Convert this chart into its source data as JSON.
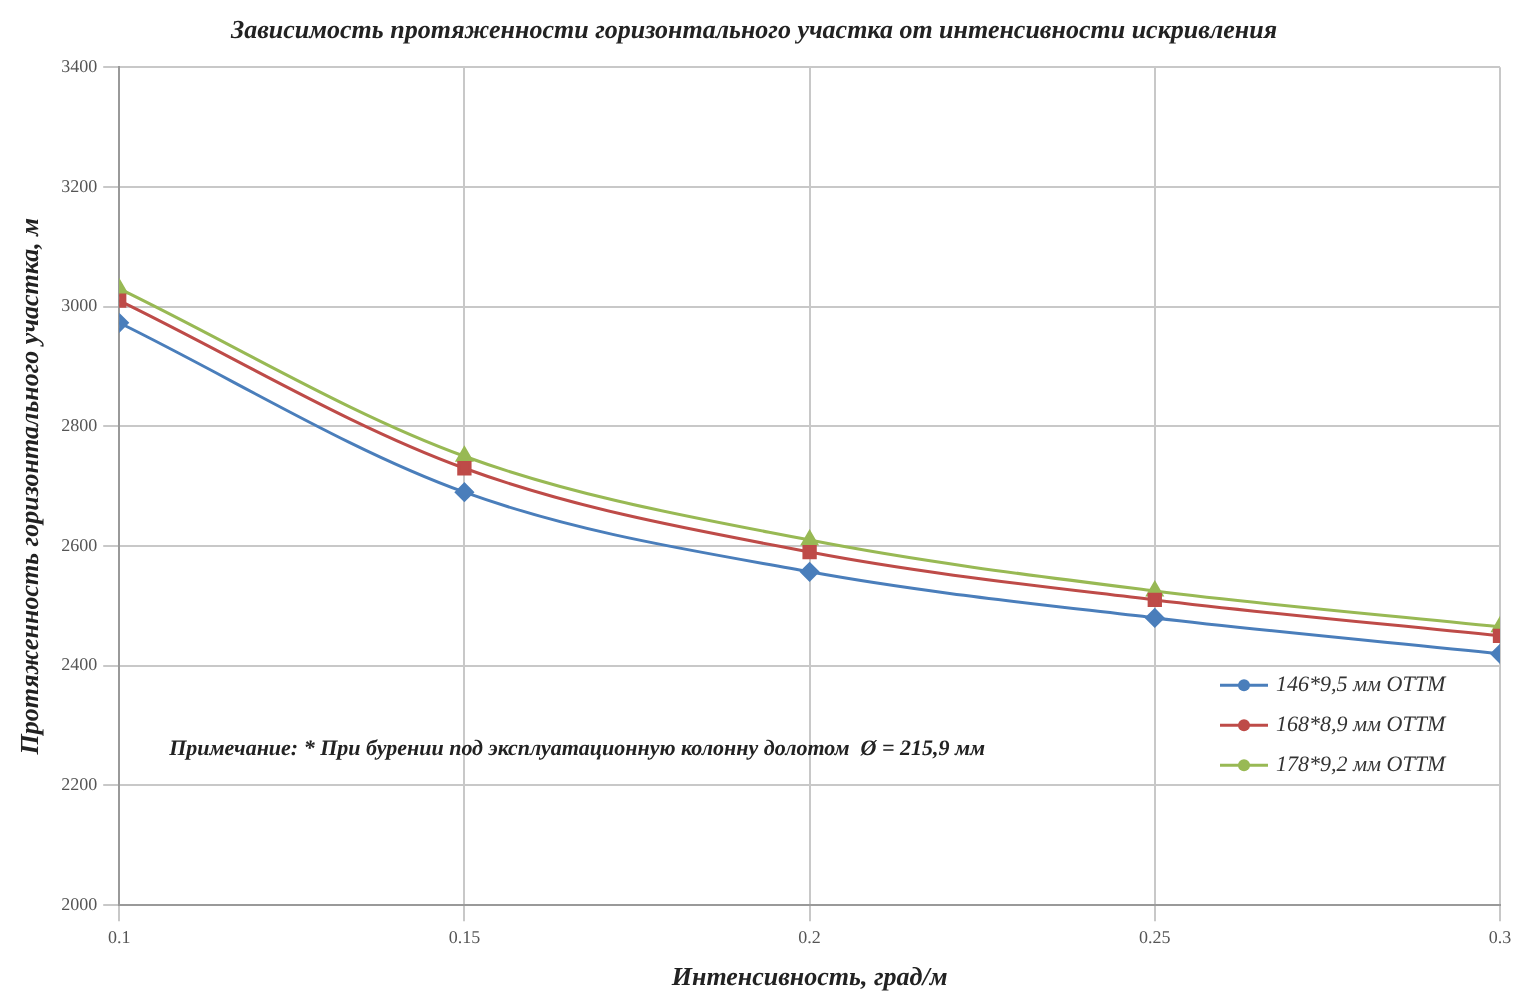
{
  "chart_data": {
    "type": "line",
    "title": "Зависимость протяженности горизонтального участка от интенсивности искривления",
    "xlabel": "Интенсивность, град/м",
    "ylabel": "Протяженность горизонтального участка, м",
    "x": [
      0.1,
      0.15,
      0.2,
      0.25,
      0.3
    ],
    "series": [
      {
        "name": "146*9,5 мм ОТТМ",
        "color": "#4a7ebb",
        "marker": "diamond",
        "values": [
          2973,
          2690,
          2557,
          2480,
          2420
        ]
      },
      {
        "name": "168*8,9 мм ОТТМ",
        "color": "#be4b48",
        "marker": "square",
        "values": [
          3010,
          2730,
          2590,
          2510,
          2450
        ]
      },
      {
        "name": "178*9,2 мм ОТТМ",
        "color": "#98b954",
        "marker": "triangle",
        "values": [
          3030,
          2750,
          2610,
          2525,
          2465
        ]
      }
    ],
    "xlim": [
      0.1,
      0.3
    ],
    "xticks": [
      0.1,
      0.15,
      0.2,
      0.25,
      0.3
    ],
    "ylim": [
      2000,
      3400
    ],
    "yticks": [
      2000,
      2200,
      2400,
      2600,
      2800,
      3000,
      3200,
      3400
    ],
    "grid": true,
    "legend": "bottom right",
    "line_style": "solid",
    "annotations": [
      "Примечание: * При бурении под эксплуатационную колонну долотом  Ø = 215,9 мм"
    ]
  }
}
